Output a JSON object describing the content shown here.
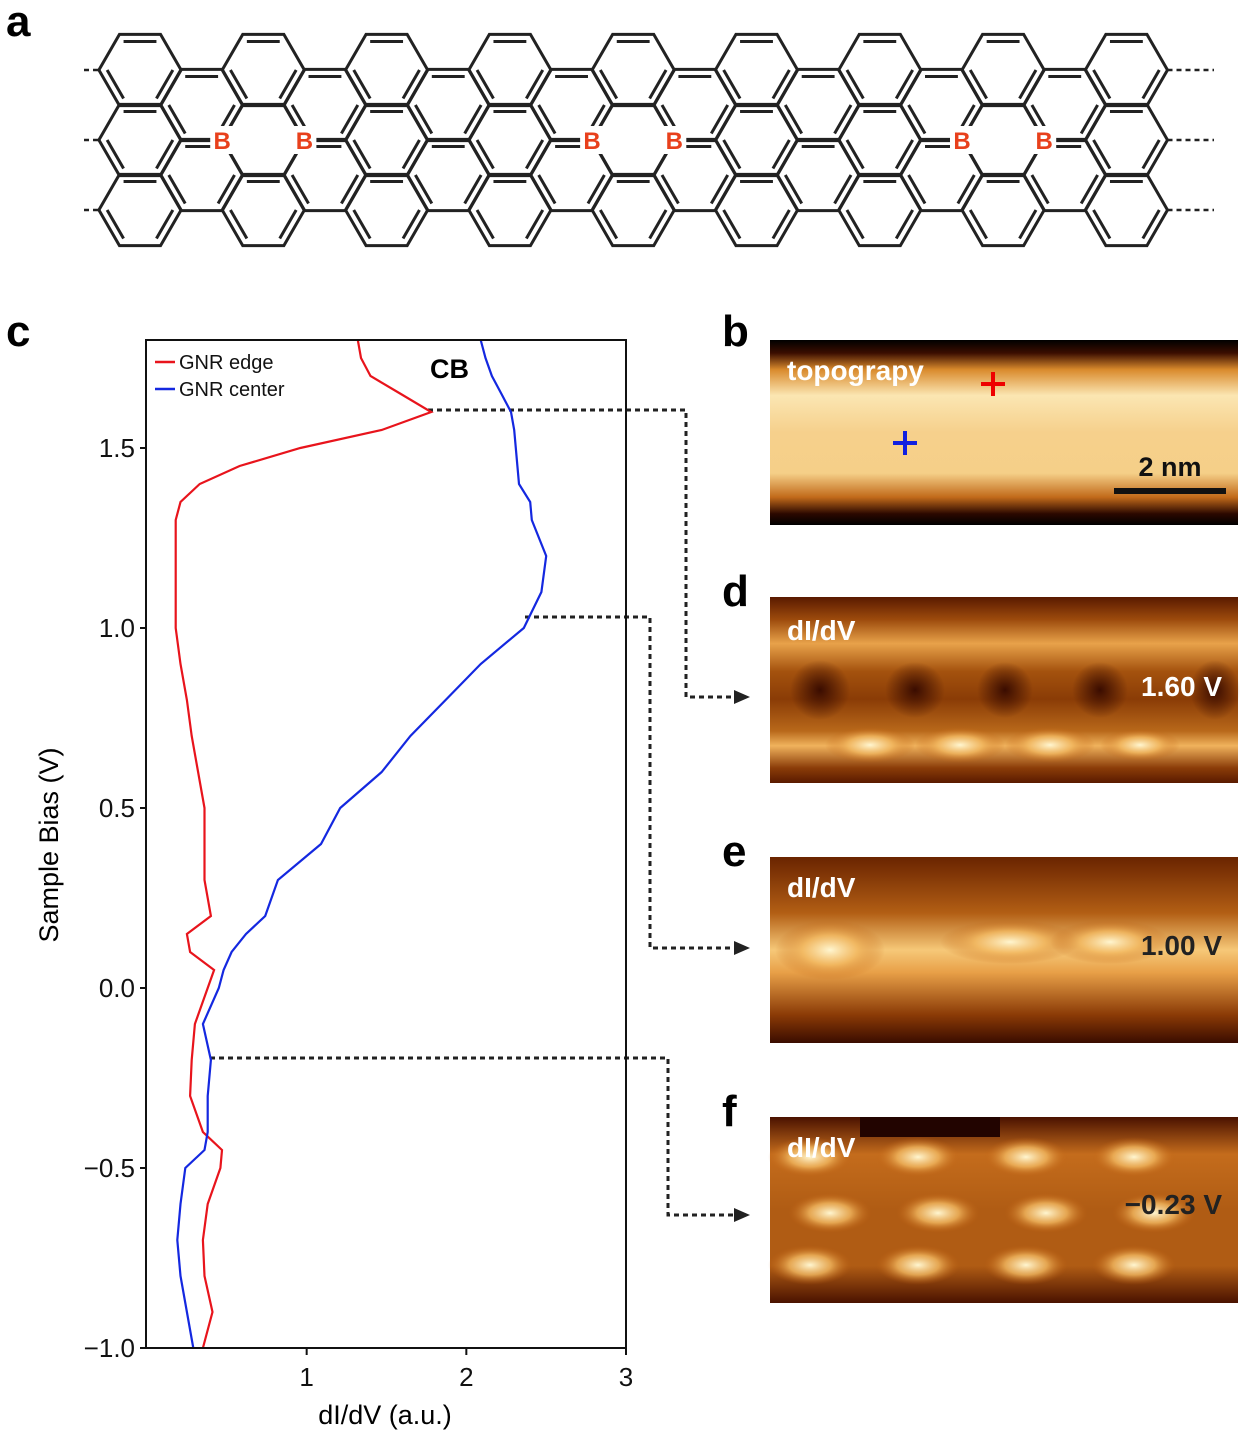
{
  "panel_labels": {
    "a": "a",
    "b": "b",
    "c": "c",
    "d": "d",
    "e": "e",
    "f": "f"
  },
  "structure": {
    "atoms": [
      "B",
      "B",
      "B",
      "B",
      "B",
      "B"
    ]
  },
  "images": {
    "b": {
      "label": "topograpy",
      "scale_bar": "2 nm"
    },
    "d": {
      "label": "dI/dV",
      "bias": "1.60 V"
    },
    "e": {
      "label": "dI/dV",
      "bias": "1.00 V"
    },
    "f": {
      "label": "dI/dV",
      "bias": "−0.23 V"
    }
  },
  "chart_data": {
    "type": "line",
    "orientation": "vertical",
    "x_label": "Sample Bias (V)",
    "y_label": "dI/dV (a.u.)",
    "annotation": "CB",
    "x": [
      -1,
      -0.9,
      -0.8,
      -0.7,
      -0.6,
      -0.5,
      -0.45,
      -0.4,
      -0.3,
      -0.2,
      -0.1,
      0,
      0.05,
      0.1,
      0.15,
      0.2,
      0.3,
      0.4,
      0.5,
      0.6,
      0.7,
      0.8,
      0.9,
      1.0,
      1.1,
      1.2,
      1.3,
      1.35,
      1.4,
      1.45,
      1.5,
      1.55,
      1.6,
      1.65,
      1.7,
      1.75,
      1.8
    ],
    "series": [
      {
        "name": "GNR edge",
        "color": "#e8141c",
        "values": [
          0.35,
          0.41,
          0.36,
          0.35,
          0.38,
          0.46,
          0.47,
          0.35,
          0.27,
          0.28,
          0.3,
          0.38,
          0.42,
          0.27,
          0.25,
          0.4,
          0.36,
          0.36,
          0.36,
          0.32,
          0.28,
          0.25,
          0.21,
          0.18,
          0.18,
          0.18,
          0.18,
          0.21,
          0.33,
          0.58,
          0.96,
          1.47,
          1.78,
          1.59,
          1.4,
          1.34,
          1.32
        ]
      },
      {
        "name": "GNR center",
        "color": "#1428e0",
        "values": [
          0.29,
          0.25,
          0.21,
          0.19,
          0.21,
          0.24,
          0.36,
          0.38,
          0.38,
          0.4,
          0.35,
          0.45,
          0.48,
          0.53,
          0.62,
          0.74,
          0.82,
          1.09,
          1.21,
          1.47,
          1.65,
          1.87,
          2.09,
          2.36,
          2.47,
          2.5,
          2.41,
          2.4,
          2.33,
          2.32,
          2.31,
          2.3,
          2.28,
          2.22,
          2.16,
          2.12,
          2.09
        ]
      }
    ],
    "xlim": [
      -1,
      1.8
    ],
    "xticks": [
      {
        "value": -1,
        "label": "−1.0"
      },
      {
        "value": -0.5,
        "label": "−0.5"
      },
      {
        "value": 0,
        "label": "0.0"
      },
      {
        "value": 0.5,
        "label": "0.5"
      },
      {
        "value": 1,
        "label": "1.0"
      },
      {
        "value": 1.5,
        "label": "1.5"
      }
    ],
    "ylim": [
      0,
      3
    ],
    "yticks": [
      1,
      2,
      3
    ],
    "legend": "top-left"
  }
}
